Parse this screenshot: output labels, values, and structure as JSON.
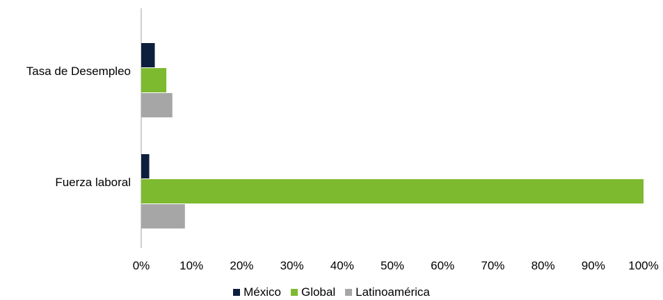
{
  "chart_data": {
    "type": "bar",
    "orientation": "horizontal",
    "categories": [
      "Tasa de Desempleo",
      "Fuerza laboral"
    ],
    "series": [
      {
        "name": "México",
        "color": "#0d1f3c",
        "values": [
          2.7,
          1.6
        ]
      },
      {
        "name": "Global",
        "color": "#7dba2f",
        "values": [
          5.0,
          100.0
        ]
      },
      {
        "name": "Latinoamérica",
        "color": "#a6a6a6",
        "values": [
          6.2,
          8.7
        ]
      }
    ],
    "xlim": [
      0,
      100
    ],
    "x_ticks": [
      "0%",
      "10%",
      "20%",
      "30%",
      "40%",
      "50%",
      "60%",
      "70%",
      "80%",
      "90%",
      "100%"
    ],
    "x_tick_values": [
      0,
      10,
      20,
      30,
      40,
      50,
      60,
      70,
      80,
      90,
      100
    ],
    "grid": false,
    "legend_position": "bottom"
  }
}
